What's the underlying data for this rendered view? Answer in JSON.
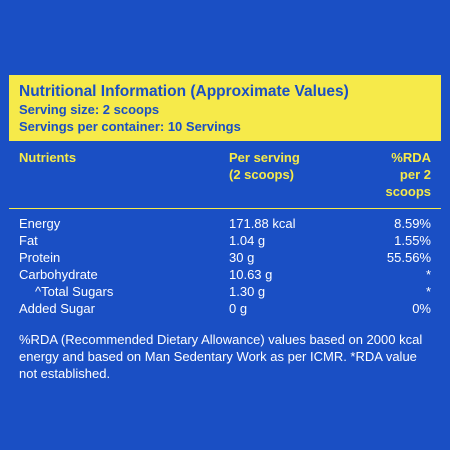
{
  "header": {
    "title": "Nutritional Information (Approximate Values)",
    "serving_size": "Serving size: 2 scoops",
    "servings_per_container": "Servings per container: 10 Servings"
  },
  "columns": {
    "nutrients": "Nutrients",
    "per_serving_line1": "Per serving",
    "per_serving_line2": "(2 scoops)",
    "rda_line1": "%RDA",
    "rda_line2": "per 2 scoops"
  },
  "rows": [
    {
      "name": "Energy",
      "value": "171.88 kcal",
      "rda": "8.59%"
    },
    {
      "name": "Fat",
      "value": "1.04 g",
      "rda": "1.55%"
    },
    {
      "name": "Protein",
      "value": "30 g",
      "rda": "55.56%"
    },
    {
      "name": "Carbohydrate",
      "value": "10.63 g",
      "rda": "*"
    },
    {
      "name": "^Total Sugars",
      "value": "1.30 g",
      "rda": "*"
    },
    {
      "name": "Added Sugar",
      "value": "0 g",
      "rda": "0%"
    }
  ],
  "footnote": "%RDA (Recommended Dietary Allowance) values based on 2000 kcal energy and based on Man Sedentary Work as per ICMR. *RDA value not established.",
  "colors": {
    "background": "#1a4fc4",
    "header_band": "#f6ea4a",
    "text": "#ffffff"
  }
}
